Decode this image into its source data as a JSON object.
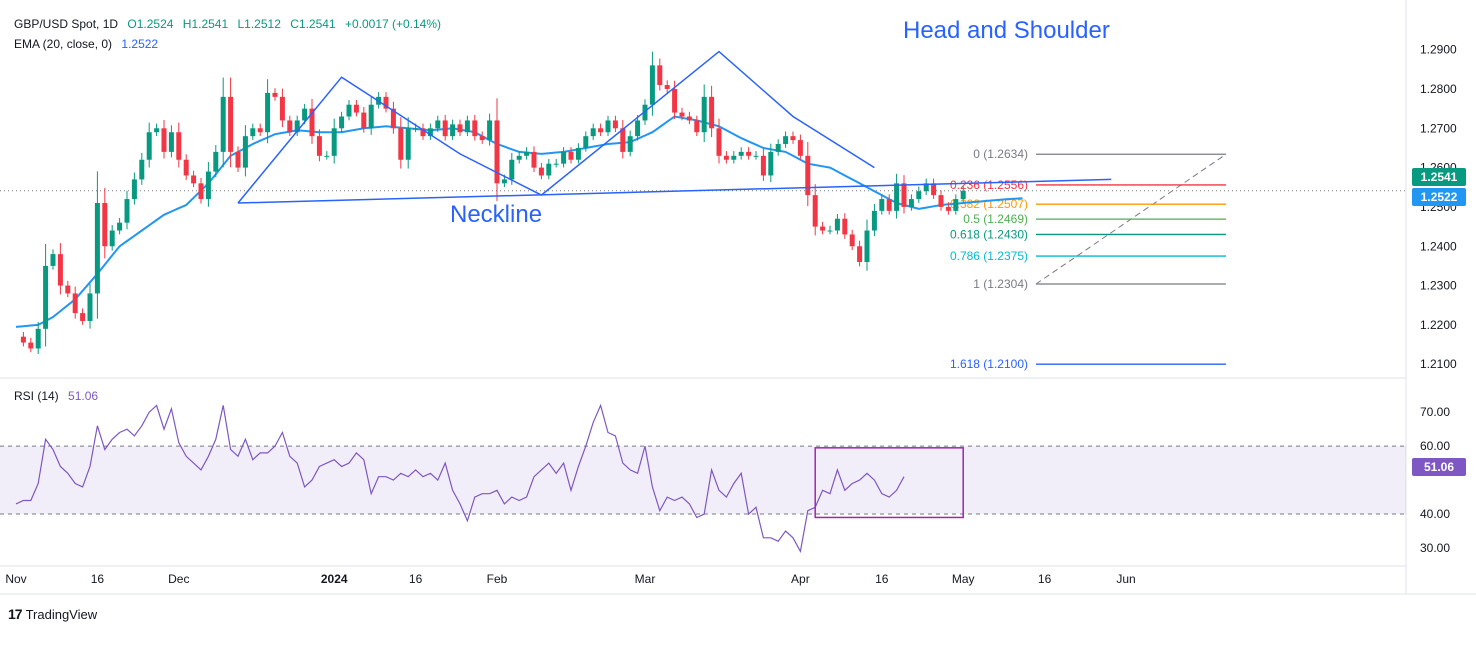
{
  "header": {
    "symbol": "GBP/USD Spot, 1D",
    "open": "O1.2524",
    "high": "H1.2541",
    "low": "L1.2512",
    "close": "C1.2541",
    "change": "+0.0017 (+0.14%)",
    "ema_label": "EMA (20, close, 0)",
    "ema_value": "1.2522",
    "rsi_label": "RSI (14)",
    "rsi_value": "51.06"
  },
  "annotations": {
    "title": "Head and Shoulder",
    "neckline": "Neckline"
  },
  "badges": {
    "last_price": "1.2541",
    "ema_price": "1.2522",
    "rsi": "51.06"
  },
  "footer": {
    "brand": "TradingView"
  },
  "chart_data": {
    "type": "candlestick",
    "price_axis": {
      "ticks": [
        "1.2900",
        "1.2800",
        "1.2700",
        "1.2600",
        "1.2500",
        "1.2400",
        "1.2300",
        "1.2200",
        "1.2100"
      ],
      "ylim": [
        1.207,
        1.295
      ]
    },
    "rsi_axis": {
      "ticks": [
        "70.00",
        "60.00",
        "40.00",
        "30.00"
      ],
      "ylim": [
        25,
        78
      ],
      "band": [
        40,
        60
      ]
    },
    "x_ticks": [
      {
        "label": "Nov",
        "day": 0
      },
      {
        "label": "16",
        "day": 11
      },
      {
        "label": "Dec",
        "day": 22
      },
      {
        "label": "2024",
        "day": 43
      },
      {
        "label": "16",
        "day": 54
      },
      {
        "label": "Feb",
        "day": 65
      },
      {
        "label": "Mar",
        "day": 85
      },
      {
        "label": "Apr",
        "day": 106
      },
      {
        "label": "16",
        "day": 117
      },
      {
        "label": "May",
        "day": 128
      },
      {
        "label": "16",
        "day": 139
      },
      {
        "label": "Jun",
        "day": 150
      }
    ],
    "ema_anchors": [
      [
        0,
        1.2195
      ],
      [
        3,
        1.22
      ],
      [
        5,
        1.222
      ],
      [
        8,
        1.2265
      ],
      [
        11,
        1.233
      ],
      [
        14,
        1.24
      ],
      [
        17,
        1.244
      ],
      [
        20,
        1.248
      ],
      [
        23,
        1.2505
      ],
      [
        26,
        1.256
      ],
      [
        29,
        1.263
      ],
      [
        32,
        1.266
      ],
      [
        35,
        1.2685
      ],
      [
        38,
        1.2695
      ],
      [
        41,
        1.269
      ],
      [
        44,
        1.269
      ],
      [
        47,
        1.27
      ],
      [
        50,
        1.2705
      ],
      [
        53,
        1.27
      ],
      [
        56,
        1.2695
      ],
      [
        59,
        1.27
      ],
      [
        62,
        1.269
      ],
      [
        65,
        1.266
      ],
      [
        68,
        1.264
      ],
      [
        71,
        1.2635
      ],
      [
        74,
        1.264
      ],
      [
        77,
        1.265
      ],
      [
        80,
        1.266
      ],
      [
        83,
        1.2665
      ],
      [
        86,
        1.269
      ],
      [
        89,
        1.273
      ],
      [
        92,
        1.272
      ],
      [
        95,
        1.2705
      ],
      [
        98,
        1.2675
      ],
      [
        101,
        1.265
      ],
      [
        104,
        1.264
      ],
      [
        107,
        1.261
      ],
      [
        110,
        1.26
      ],
      [
        113,
        1.257
      ],
      [
        116,
        1.254
      ],
      [
        119,
        1.251
      ],
      [
        122,
        1.2495
      ],
      [
        125,
        1.2505
      ],
      [
        128,
        1.251
      ],
      [
        131,
        1.2515
      ],
      [
        134,
        1.252
      ],
      [
        136,
        1.2522
      ]
    ],
    "candle_anchors": [
      [
        0,
        1.217
      ],
      [
        1,
        1.2155
      ],
      [
        2,
        1.214
      ],
      [
        3,
        1.219
      ],
      [
        4,
        1.235
      ],
      [
        5,
        1.238
      ],
      [
        6,
        1.23
      ],
      [
        7,
        1.228
      ],
      [
        8,
        1.223
      ],
      [
        9,
        1.221
      ],
      [
        10,
        1.228
      ],
      [
        11,
        1.251
      ],
      [
        12,
        1.24
      ],
      [
        13,
        1.244
      ],
      [
        14,
        1.246
      ],
      [
        15,
        1.252
      ],
      [
        16,
        1.257
      ],
      [
        17,
        1.262
      ],
      [
        18,
        1.269
      ],
      [
        19,
        1.27
      ],
      [
        20,
        1.264
      ],
      [
        21,
        1.269
      ],
      [
        22,
        1.262
      ],
      [
        23,
        1.258
      ],
      [
        24,
        1.256
      ],
      [
        25,
        1.252
      ],
      [
        26,
        1.259
      ],
      [
        27,
        1.264
      ],
      [
        28,
        1.278
      ],
      [
        29,
        1.264
      ],
      [
        30,
        1.26
      ],
      [
        31,
        1.268
      ],
      [
        32,
        1.27
      ],
      [
        33,
        1.269
      ],
      [
        34,
        1.279
      ],
      [
        35,
        1.278
      ],
      [
        36,
        1.272
      ],
      [
        37,
        1.269
      ],
      [
        38,
        1.272
      ],
      [
        39,
        1.275
      ],
      [
        40,
        1.268
      ],
      [
        41,
        1.263
      ],
      [
        42,
        1.263
      ],
      [
        43,
        1.27
      ],
      [
        44,
        1.273
      ],
      [
        45,
        1.276
      ],
      [
        46,
        1.274
      ],
      [
        47,
        1.27
      ],
      [
        48,
        1.276
      ],
      [
        49,
        1.278
      ],
      [
        50,
        1.275
      ],
      [
        51,
        1.27
      ],
      [
        52,
        1.262
      ],
      [
        53,
        1.27
      ],
      [
        54,
        1.27
      ],
      [
        55,
        1.268
      ],
      [
        56,
        1.27
      ],
      [
        57,
        1.272
      ],
      [
        58,
        1.268
      ],
      [
        59,
        1.271
      ],
      [
        60,
        1.269
      ],
      [
        61,
        1.272
      ],
      [
        62,
        1.268
      ],
      [
        63,
        1.267
      ],
      [
        64,
        1.272
      ],
      [
        65,
        1.256
      ],
      [
        66,
        1.257
      ],
      [
        67,
        1.262
      ],
      [
        68,
        1.263
      ],
      [
        69,
        1.264
      ],
      [
        70,
        1.26
      ],
      [
        71,
        1.258
      ],
      [
        72,
        1.261
      ],
      [
        73,
        1.261
      ],
      [
        74,
        1.264
      ],
      [
        75,
        1.262
      ],
      [
        76,
        1.265
      ],
      [
        77,
        1.268
      ],
      [
        78,
        1.27
      ],
      [
        79,
        1.269
      ],
      [
        80,
        1.272
      ],
      [
        81,
        1.27
      ],
      [
        82,
        1.264
      ],
      [
        83,
        1.268
      ],
      [
        84,
        1.272
      ],
      [
        85,
        1.276
      ],
      [
        86,
        1.286
      ],
      [
        87,
        1.281
      ],
      [
        88,
        1.28
      ],
      [
        89,
        1.274
      ],
      [
        90,
        1.273
      ],
      [
        91,
        1.272
      ],
      [
        92,
        1.269
      ],
      [
        93,
        1.278
      ],
      [
        94,
        1.27
      ],
      [
        95,
        1.263
      ],
      [
        96,
        1.262
      ],
      [
        97,
        1.263
      ],
      [
        98,
        1.264
      ],
      [
        99,
        1.263
      ],
      [
        100,
        1.263
      ],
      [
        101,
        1.258
      ],
      [
        102,
        1.264
      ],
      [
        103,
        1.266
      ],
      [
        104,
        1.268
      ],
      [
        105,
        1.267
      ],
      [
        106,
        1.263
      ],
      [
        107,
        1.253
      ],
      [
        108,
        1.245
      ],
      [
        109,
        1.244
      ],
      [
        110,
        1.244
      ],
      [
        111,
        1.247
      ],
      [
        112,
        1.243
      ],
      [
        113,
        1.24
      ],
      [
        114,
        1.236
      ],
      [
        115,
        1.244
      ],
      [
        116,
        1.249
      ],
      [
        117,
        1.252
      ],
      [
        118,
        1.249
      ],
      [
        119,
        1.256
      ],
      [
        120,
        1.25
      ],
      [
        121,
        1.252
      ],
      [
        122,
        1.254
      ],
      [
        123,
        1.256
      ],
      [
        124,
        1.253
      ],
      [
        125,
        1.25
      ],
      [
        126,
        1.249
      ],
      [
        127,
        1.252
      ],
      [
        128,
        1.2541
      ]
    ],
    "rsi_anchors": [
      [
        0,
        43
      ],
      [
        1,
        44
      ],
      [
        2,
        44
      ],
      [
        3,
        49
      ],
      [
        4,
        62
      ],
      [
        5,
        59
      ],
      [
        6,
        54
      ],
      [
        7,
        52
      ],
      [
        8,
        49
      ],
      [
        9,
        48
      ],
      [
        10,
        54
      ],
      [
        11,
        66
      ],
      [
        12,
        59
      ],
      [
        13,
        62
      ],
      [
        14,
        64
      ],
      [
        15,
        65
      ],
      [
        16,
        63
      ],
      [
        17,
        66
      ],
      [
        18,
        70
      ],
      [
        19,
        72
      ],
      [
        20,
        65
      ],
      [
        21,
        71
      ],
      [
        22,
        61
      ],
      [
        23,
        57
      ],
      [
        24,
        55
      ],
      [
        25,
        53
      ],
      [
        26,
        57
      ],
      [
        27,
        62
      ],
      [
        28,
        72
      ],
      [
        29,
        59
      ],
      [
        30,
        57
      ],
      [
        31,
        62
      ],
      [
        32,
        56
      ],
      [
        33,
        58
      ],
      [
        34,
        58
      ],
      [
        35,
        60
      ],
      [
        36,
        64
      ],
      [
        37,
        57
      ],
      [
        38,
        55
      ],
      [
        39,
        48
      ],
      [
        40,
        50
      ],
      [
        41,
        54
      ],
      [
        42,
        55
      ],
      [
        43,
        56
      ],
      [
        44,
        54
      ],
      [
        45,
        55
      ],
      [
        46,
        58
      ],
      [
        47,
        56
      ],
      [
        48,
        46
      ],
      [
        49,
        51
      ],
      [
        50,
        51
      ],
      [
        51,
        50
      ],
      [
        52,
        52
      ],
      [
        53,
        51
      ],
      [
        54,
        53
      ],
      [
        55,
        51
      ],
      [
        56,
        52
      ],
      [
        57,
        50
      ],
      [
        58,
        55
      ],
      [
        59,
        47
      ],
      [
        60,
        43
      ],
      [
        61,
        38
      ],
      [
        62,
        45
      ],
      [
        63,
        46
      ],
      [
        64,
        46
      ],
      [
        65,
        47
      ],
      [
        66,
        43
      ],
      [
        67,
        45
      ],
      [
        68,
        44
      ],
      [
        69,
        45
      ],
      [
        70,
        51
      ],
      [
        71,
        53
      ],
      [
        72,
        55
      ],
      [
        73,
        52
      ],
      [
        74,
        55
      ],
      [
        75,
        47
      ],
      [
        76,
        54
      ],
      [
        77,
        60
      ],
      [
        78,
        67
      ],
      [
        79,
        72
      ],
      [
        80,
        64
      ],
      [
        81,
        63
      ],
      [
        82,
        55
      ],
      [
        83,
        53
      ],
      [
        84,
        52
      ],
      [
        85,
        60
      ],
      [
        86,
        48
      ],
      [
        87,
        41
      ],
      [
        88,
        45
      ],
      [
        89,
        44
      ],
      [
        90,
        45
      ],
      [
        91,
        43
      ],
      [
        92,
        39
      ],
      [
        93,
        40
      ],
      [
        94,
        53
      ],
      [
        95,
        47
      ],
      [
        96,
        45
      ],
      [
        97,
        49
      ],
      [
        98,
        52
      ],
      [
        99,
        40
      ],
      [
        100,
        42
      ],
      [
        101,
        33
      ],
      [
        102,
        33
      ],
      [
        103,
        32
      ],
      [
        104,
        35
      ],
      [
        105,
        33
      ],
      [
        106,
        29
      ],
      [
        107,
        41
      ],
      [
        108,
        42
      ],
      [
        109,
        47
      ],
      [
        110,
        46
      ],
      [
        111,
        53
      ],
      [
        112,
        47
      ],
      [
        113,
        49
      ],
      [
        114,
        50
      ],
      [
        115,
        52
      ],
      [
        116,
        50
      ],
      [
        117,
        46
      ],
      [
        118,
        45
      ],
      [
        119,
        47
      ],
      [
        120,
        51
      ]
    ],
    "pattern_lines": [
      [
        [
          30,
          1.251
        ],
        [
          44,
          1.283
        ],
        [
          60,
          1.2635
        ],
        [
          71,
          1.253
        ],
        [
          95,
          1.2895
        ],
        [
          105,
          1.273
        ],
        [
          116,
          1.26
        ]
      ],
      [
        [
          30,
          1.251
        ],
        [
          148,
          1.257
        ]
      ]
    ],
    "fibonacci": {
      "levels": [
        {
          "label": "0 (1.2634)",
          "value": 1.2634,
          "color": "#787b86"
        },
        {
          "label": "0.236 (1.2556)",
          "value": 1.2556,
          "color": "#f23645"
        },
        {
          "label": "0.382 (1.2507)",
          "value": 1.2507,
          "color": "#ff9800"
        },
        {
          "label": "0.5 (1.2469)",
          "value": 1.2469,
          "color": "#4caf50"
        },
        {
          "label": "0.618 (1.2430)",
          "value": 1.243,
          "color": "#089981"
        },
        {
          "label": "0.786 (1.2375)",
          "value": 1.2375,
          "color": "#00bcd4"
        },
        {
          "label": "1 (1.2304)",
          "value": 1.2304,
          "color": "#787b86"
        },
        {
          "label": "1.618 (1.2100)",
          "value": 1.21,
          "color": "#2962ff"
        }
      ]
    },
    "colors": {
      "up": "#089981",
      "down": "#f23645",
      "ema": "#2196f3",
      "rsi": "#7e57c2",
      "pattern": "#2962ff",
      "box": "#9c27b0"
    }
  }
}
